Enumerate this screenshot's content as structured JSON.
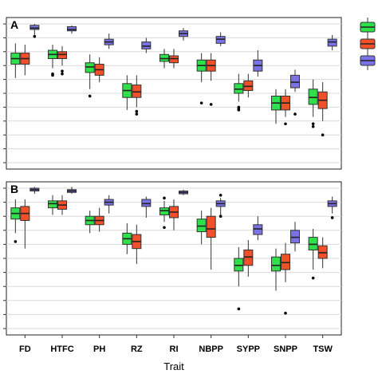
{
  "chart_data": {
    "type": "box",
    "xlabel": "Trait",
    "categories": [
      "FD",
      "HTFC",
      "PH",
      "RZ",
      "RI",
      "NBPP",
      "SYPP",
      "SNPP",
      "TSW"
    ],
    "legend": {
      "placement": "top-right",
      "colors": [
        "#2ee04a",
        "#f0502a",
        "#7a72e8"
      ]
    },
    "colors": {
      "green": "#2ee04a",
      "red": "#f0502a",
      "blue": "#7a72e8"
    },
    "ylim": [
      0,
      100
    ],
    "panels": [
      {
        "label": "A",
        "groups": [
          [
            {
              "min": 61,
              "q1": 71,
              "median": 75,
              "q3": 79,
              "max": 86,
              "outliers": []
            },
            {
              "min": 63,
              "q1": 71,
              "median": 75,
              "q3": 79,
              "max": 85,
              "outliers": []
            },
            {
              "min": 92,
              "q1": 96,
              "median": 97,
              "q3": 99,
              "max": 100,
              "outliers": [
                91
              ]
            }
          ],
          [
            {
              "min": 68,
              "q1": 75,
              "median": 78,
              "q3": 81,
              "max": 85,
              "outliers": [
                64,
                63
              ]
            },
            {
              "min": 70,
              "q1": 75,
              "median": 78,
              "q3": 80,
              "max": 84,
              "outliers": [
                66,
                64
              ]
            },
            {
              "min": 93,
              "q1": 95,
              "median": 96,
              "q3": 98,
              "max": 99,
              "outliers": []
            }
          ],
          [
            {
              "min": 53,
              "q1": 65,
              "median": 69,
              "q3": 72,
              "max": 78,
              "outliers": [
                48
              ]
            },
            {
              "min": 58,
              "q1": 63,
              "median": 67,
              "q3": 71,
              "max": 76,
              "outliers": []
            },
            {
              "min": 82,
              "q1": 85,
              "median": 87,
              "q3": 89,
              "max": 93,
              "outliers": []
            }
          ],
          [
            {
              "min": 38,
              "q1": 47,
              "median": 52,
              "q3": 57,
              "max": 63,
              "outliers": []
            },
            {
              "min": 40,
              "q1": 47,
              "median": 51,
              "q3": 56,
              "max": 63,
              "outliers": [
                37,
                35
              ]
            },
            {
              "min": 79,
              "q1": 82,
              "median": 84,
              "q3": 87,
              "max": 90,
              "outliers": []
            }
          ],
          [
            {
              "min": 68,
              "q1": 73,
              "median": 75,
              "q3": 78,
              "max": 82,
              "outliers": []
            },
            {
              "min": 68,
              "q1": 72,
              "median": 75,
              "q3": 77,
              "max": 82,
              "outliers": []
            },
            {
              "min": 88,
              "q1": 91,
              "median": 93,
              "q3": 95,
              "max": 97,
              "outliers": []
            }
          ],
          [
            {
              "min": 58,
              "q1": 66,
              "median": 70,
              "q3": 74,
              "max": 79,
              "outliers": [
                43
              ]
            },
            {
              "min": 59,
              "q1": 66,
              "median": 70,
              "q3": 74,
              "max": 79,
              "outliers": [
                42
              ]
            },
            {
              "min": 84,
              "q1": 86,
              "median": 89,
              "q3": 91,
              "max": 94,
              "outliers": []
            }
          ],
          [
            {
              "min": 44,
              "q1": 50,
              "median": 53,
              "q3": 57,
              "max": 64,
              "outliers": [
                40,
                39,
                38
              ]
            },
            {
              "min": 47,
              "q1": 52,
              "median": 55,
              "q3": 59,
              "max": 64,
              "outliers": []
            },
            {
              "min": 62,
              "q1": 66,
              "median": 70,
              "q3": 74,
              "max": 81,
              "outliers": []
            }
          ],
          [
            {
              "min": 28,
              "q1": 38,
              "median": 43,
              "q3": 48,
              "max": 53,
              "outliers": []
            },
            {
              "min": 33,
              "q1": 38,
              "median": 43,
              "q3": 48,
              "max": 53,
              "outliers": [
                28
              ]
            },
            {
              "min": 51,
              "q1": 54,
              "median": 58,
              "q3": 63,
              "max": 67,
              "outliers": [
                35
              ]
            }
          ],
          [
            {
              "min": 33,
              "q1": 42,
              "median": 47,
              "q3": 53,
              "max": 60,
              "outliers": [
                28,
                26
              ]
            },
            {
              "min": 30,
              "q1": 39,
              "median": 45,
              "q3": 51,
              "max": 58,
              "outliers": [
                20
              ]
            },
            {
              "min": 81,
              "q1": 84,
              "median": 87,
              "q3": 89,
              "max": 92,
              "outliers": []
            }
          ]
        ]
      },
      {
        "label": "B",
        "groups": [
          [
            {
              "min": 68,
              "q1": 78,
              "median": 82,
              "q3": 86,
              "max": 92,
              "outliers": [
                62
              ]
            },
            {
              "min": 57,
              "q1": 77,
              "median": 82,
              "q3": 87,
              "max": 92,
              "outliers": []
            },
            {
              "min": 96,
              "q1": 98,
              "median": 99,
              "q3": 100,
              "max": 101,
              "outliers": []
            }
          ],
          [
            {
              "min": 81,
              "q1": 86,
              "median": 89,
              "q3": 91,
              "max": 95,
              "outliers": []
            },
            {
              "min": 81,
              "q1": 85,
              "median": 88,
              "q3": 91,
              "max": 95,
              "outliers": []
            },
            {
              "min": 96,
              "q1": 97,
              "median": 98,
              "q3": 99,
              "max": 101,
              "outliers": []
            }
          ],
          [
            {
              "min": 68,
              "q1": 74,
              "median": 77,
              "q3": 80,
              "max": 84,
              "outliers": []
            },
            {
              "min": 69,
              "q1": 74,
              "median": 77,
              "q3": 80,
              "max": 86,
              "outliers": []
            },
            {
              "min": 82,
              "q1": 88,
              "median": 90,
              "q3": 92,
              "max": 95,
              "outliers": []
            }
          ],
          [
            {
              "min": 53,
              "q1": 60,
              "median": 64,
              "q3": 68,
              "max": 75,
              "outliers": []
            },
            {
              "min": 46,
              "q1": 57,
              "median": 62,
              "q3": 67,
              "max": 74,
              "outliers": []
            },
            {
              "min": 79,
              "q1": 87,
              "median": 89,
              "q3": 92,
              "max": 94,
              "outliers": []
            }
          ],
          [
            {
              "min": 76,
              "q1": 81,
              "median": 84,
              "q3": 86,
              "max": 91,
              "outliers": [
                72,
                93
              ]
            },
            {
              "min": 70,
              "q1": 79,
              "median": 83,
              "q3": 87,
              "max": 92,
              "outliers": []
            },
            {
              "min": 95,
              "q1": 96,
              "median": 97,
              "q3": 98,
              "max": 99,
              "outliers": []
            }
          ],
          [
            {
              "min": 60,
              "q1": 69,
              "median": 73,
              "q3": 78,
              "max": 84,
              "outliers": []
            },
            {
              "min": 42,
              "q1": 65,
              "median": 71,
              "q3": 80,
              "max": 86,
              "outliers": []
            },
            {
              "min": 81,
              "q1": 87,
              "median": 89,
              "q3": 91,
              "max": 93,
              "outliers": [
                95,
                80
              ]
            }
          ],
          [
            {
              "min": 30,
              "q1": 41,
              "median": 45,
              "q3": 50,
              "max": 58,
              "outliers": [
                14
              ]
            },
            {
              "min": 37,
              "q1": 45,
              "median": 51,
              "q3": 56,
              "max": 63,
              "outliers": []
            },
            {
              "min": 63,
              "q1": 67,
              "median": 71,
              "q3": 74,
              "max": 80,
              "outliers": []
            }
          ],
          [
            {
              "min": 27,
              "q1": 41,
              "median": 45,
              "q3": 51,
              "max": 57,
              "outliers": []
            },
            {
              "min": 33,
              "q1": 42,
              "median": 47,
              "q3": 53,
              "max": 61,
              "outliers": [
                11
              ]
            },
            {
              "min": 55,
              "q1": 61,
              "median": 65,
              "q3": 70,
              "max": 76,
              "outliers": []
            }
          ],
          [
            {
              "min": 42,
              "q1": 56,
              "median": 60,
              "q3": 65,
              "max": 71,
              "outliers": [
                36
              ]
            },
            {
              "min": 43,
              "q1": 50,
              "median": 54,
              "q3": 59,
              "max": 65,
              "outliers": []
            },
            {
              "min": 82,
              "q1": 87,
              "median": 89,
              "q3": 91,
              "max": 94,
              "outliers": [
                79
              ]
            }
          ]
        ]
      }
    ]
  }
}
